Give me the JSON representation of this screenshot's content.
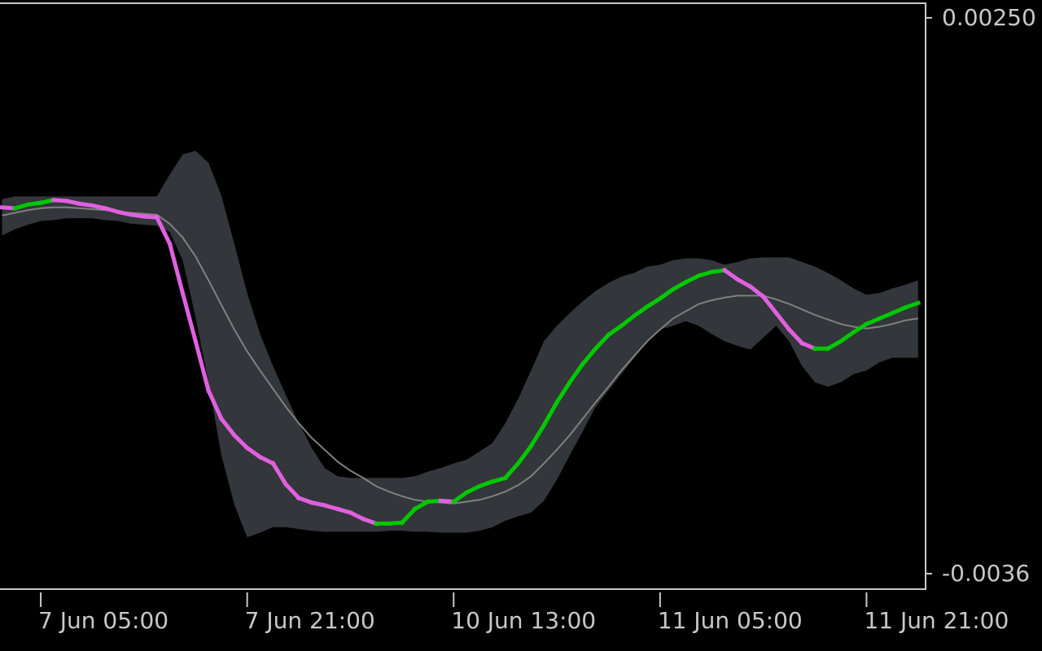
{
  "chart_data": {
    "type": "line",
    "categories": [
      null,
      null,
      null,
      "7 Jun 05:00",
      null,
      null,
      null,
      null,
      null,
      null,
      null,
      null,
      null,
      null,
      null,
      null,
      null,
      null,
      null,
      "7 Jun 21:00",
      null,
      null,
      null,
      null,
      null,
      null,
      null,
      null,
      null,
      null,
      null,
      null,
      null,
      null,
      null,
      "10 Jun 13:00",
      null,
      null,
      null,
      null,
      null,
      null,
      null,
      null,
      null,
      null,
      null,
      null,
      null,
      null,
      null,
      "11 Jun 05:00",
      null,
      null,
      null,
      null,
      null,
      null,
      null,
      null,
      null,
      null,
      null,
      null,
      null,
      null,
      null,
      "11 Jun 21:00",
      null,
      null,
      null,
      null
    ],
    "ylim": [
      -0.00377,
      0.00266
    ],
    "yticks": [
      {
        "value": 0.0025,
        "label": "0.00250"
      },
      -0.0036
    ],
    "band": {
      "color": "#33363a",
      "upper": [
        0.00051,
        0.00054,
        0.00054,
        0.00054,
        0.00054,
        0.00054,
        0.00054,
        0.00054,
        0.00054,
        0.00054,
        0.00054,
        0.00054,
        0.00054,
        0.00078,
        0.001,
        0.00104,
        0.00091,
        0.00055,
        2e-05,
        -0.00052,
        -0.00097,
        -0.00132,
        -0.00164,
        -0.00195,
        -0.00222,
        -0.00244,
        -0.00253,
        -0.00255,
        -0.00255,
        -0.00255,
        -0.00255,
        -0.00255,
        -0.00253,
        -0.00248,
        -0.00244,
        -0.00239,
        -0.00235,
        -0.00226,
        -0.00217,
        -0.00195,
        -0.00168,
        -0.00137,
        -0.00105,
        -0.00088,
        -0.00074,
        -0.00061,
        -0.0005,
        -0.00041,
        -0.00034,
        -0.0003,
        -0.00023,
        -0.00021,
        -0.00016,
        -0.00014,
        -0.00014,
        -0.00016,
        -0.00021,
        -0.00018,
        -0.00014,
        -0.00013,
        -0.00013,
        -0.00013,
        -0.00018,
        -0.00023,
        -0.0003,
        -0.00038,
        -0.00047,
        -0.00054,
        -0.00052,
        -0.00047,
        -0.00043,
        -0.00038
      ],
      "lower": [
        0.00011,
        0.00018,
        0.00023,
        0.00027,
        0.00028,
        0.0003,
        0.0003,
        0.0003,
        0.00028,
        0.00027,
        0.00024,
        0.00023,
        0.00022,
        0.00015,
        -0.00016,
        -0.00079,
        -0.0015,
        -0.0023,
        -0.00284,
        -0.0032,
        -0.00315,
        -0.00309,
        -0.00309,
        -0.00311,
        -0.00313,
        -0.00314,
        -0.00314,
        -0.00314,
        -0.00314,
        -0.00314,
        -0.00313,
        -0.00313,
        -0.00314,
        -0.00314,
        -0.00315,
        -0.00315,
        -0.00315,
        -0.00313,
        -0.00309,
        -0.00302,
        -0.00297,
        -0.00293,
        -0.0028,
        -0.00257,
        -0.0023,
        -0.00204,
        -0.00177,
        -0.00159,
        -0.00141,
        -0.00123,
        -0.00105,
        -0.00092,
        -0.00088,
        -0.00083,
        -0.00088,
        -0.00097,
        -0.00105,
        -0.0011,
        -0.00114,
        -0.00101,
        -0.00088,
        -0.00105,
        -0.00132,
        -0.0015,
        -0.00155,
        -0.0015,
        -0.00141,
        -0.00137,
        -0.00128,
        -0.00123,
        -0.00123,
        -0.00123
      ]
    },
    "middle": {
      "color": "#808080",
      "values": [
        0.00033,
        0.00036,
        0.00039,
        0.00041,
        0.00042,
        0.00042,
        0.00041,
        0.0004,
        0.00039,
        0.00037,
        0.00036,
        0.00035,
        0.00034,
        0.00024,
        9e-05,
        -0.00012,
        -0.00038,
        -0.00065,
        -0.00092,
        -0.00116,
        -0.00137,
        -0.00157,
        -0.00177,
        -0.00195,
        -0.00211,
        -0.00224,
        -0.00237,
        -0.00247,
        -0.00255,
        -0.00264,
        -0.0027,
        -0.00275,
        -0.00279,
        -0.00281,
        -0.00282,
        -0.00283,
        -0.00281,
        -0.00279,
        -0.00275,
        -0.0027,
        -0.00263,
        -0.00253,
        -0.00239,
        -0.00224,
        -0.00208,
        -0.0019,
        -0.00172,
        -0.00155,
        -0.00137,
        -0.00121,
        -0.00105,
        -0.00092,
        -0.0008,
        -0.00072,
        -0.00064,
        -0.0006,
        -0.00057,
        -0.00055,
        -0.00055,
        -0.00055,
        -0.00059,
        -0.00064,
        -0.0007,
        -0.00076,
        -0.00081,
        -0.00086,
        -0.00089,
        -0.00091,
        -0.00089,
        -0.00086,
        -0.00082,
        -0.0008
      ]
    },
    "signal": {
      "up_color": "#00c800",
      "down_color": "#e060e0",
      "values": [
        0.00042,
        0.00041,
        0.00045,
        0.00047,
        0.0005,
        0.00049,
        0.00046,
        0.00044,
        0.00041,
        0.00037,
        0.00034,
        0.00032,
        0.00031,
        2e-05,
        -0.00052,
        -0.00105,
        -0.00159,
        -0.0019,
        -0.00208,
        -0.00222,
        -0.00232,
        -0.00239,
        -0.00262,
        -0.00277,
        -0.00282,
        -0.00285,
        -0.00289,
        -0.00293,
        -0.003,
        -0.00305,
        -0.00305,
        -0.00304,
        -0.00289,
        -0.00281,
        -0.0028,
        -0.00281,
        -0.00271,
        -0.00264,
        -0.00259,
        -0.00255,
        -0.00239,
        -0.0022,
        -0.00197,
        -0.00172,
        -0.0015,
        -0.0013,
        -0.00113,
        -0.00098,
        -0.00088,
        -0.00077,
        -0.00067,
        -0.00058,
        -0.00048,
        -0.0004,
        -0.00033,
        -0.00029,
        -0.00027,
        -0.00037,
        -0.00045,
        -0.00056,
        -0.00074,
        -0.00092,
        -0.00107,
        -0.00113,
        -0.00113,
        -0.00105,
        -0.00095,
        -0.00086,
        -0.0008,
        -0.00074,
        -0.00068,
        -0.00063
      ]
    }
  }
}
